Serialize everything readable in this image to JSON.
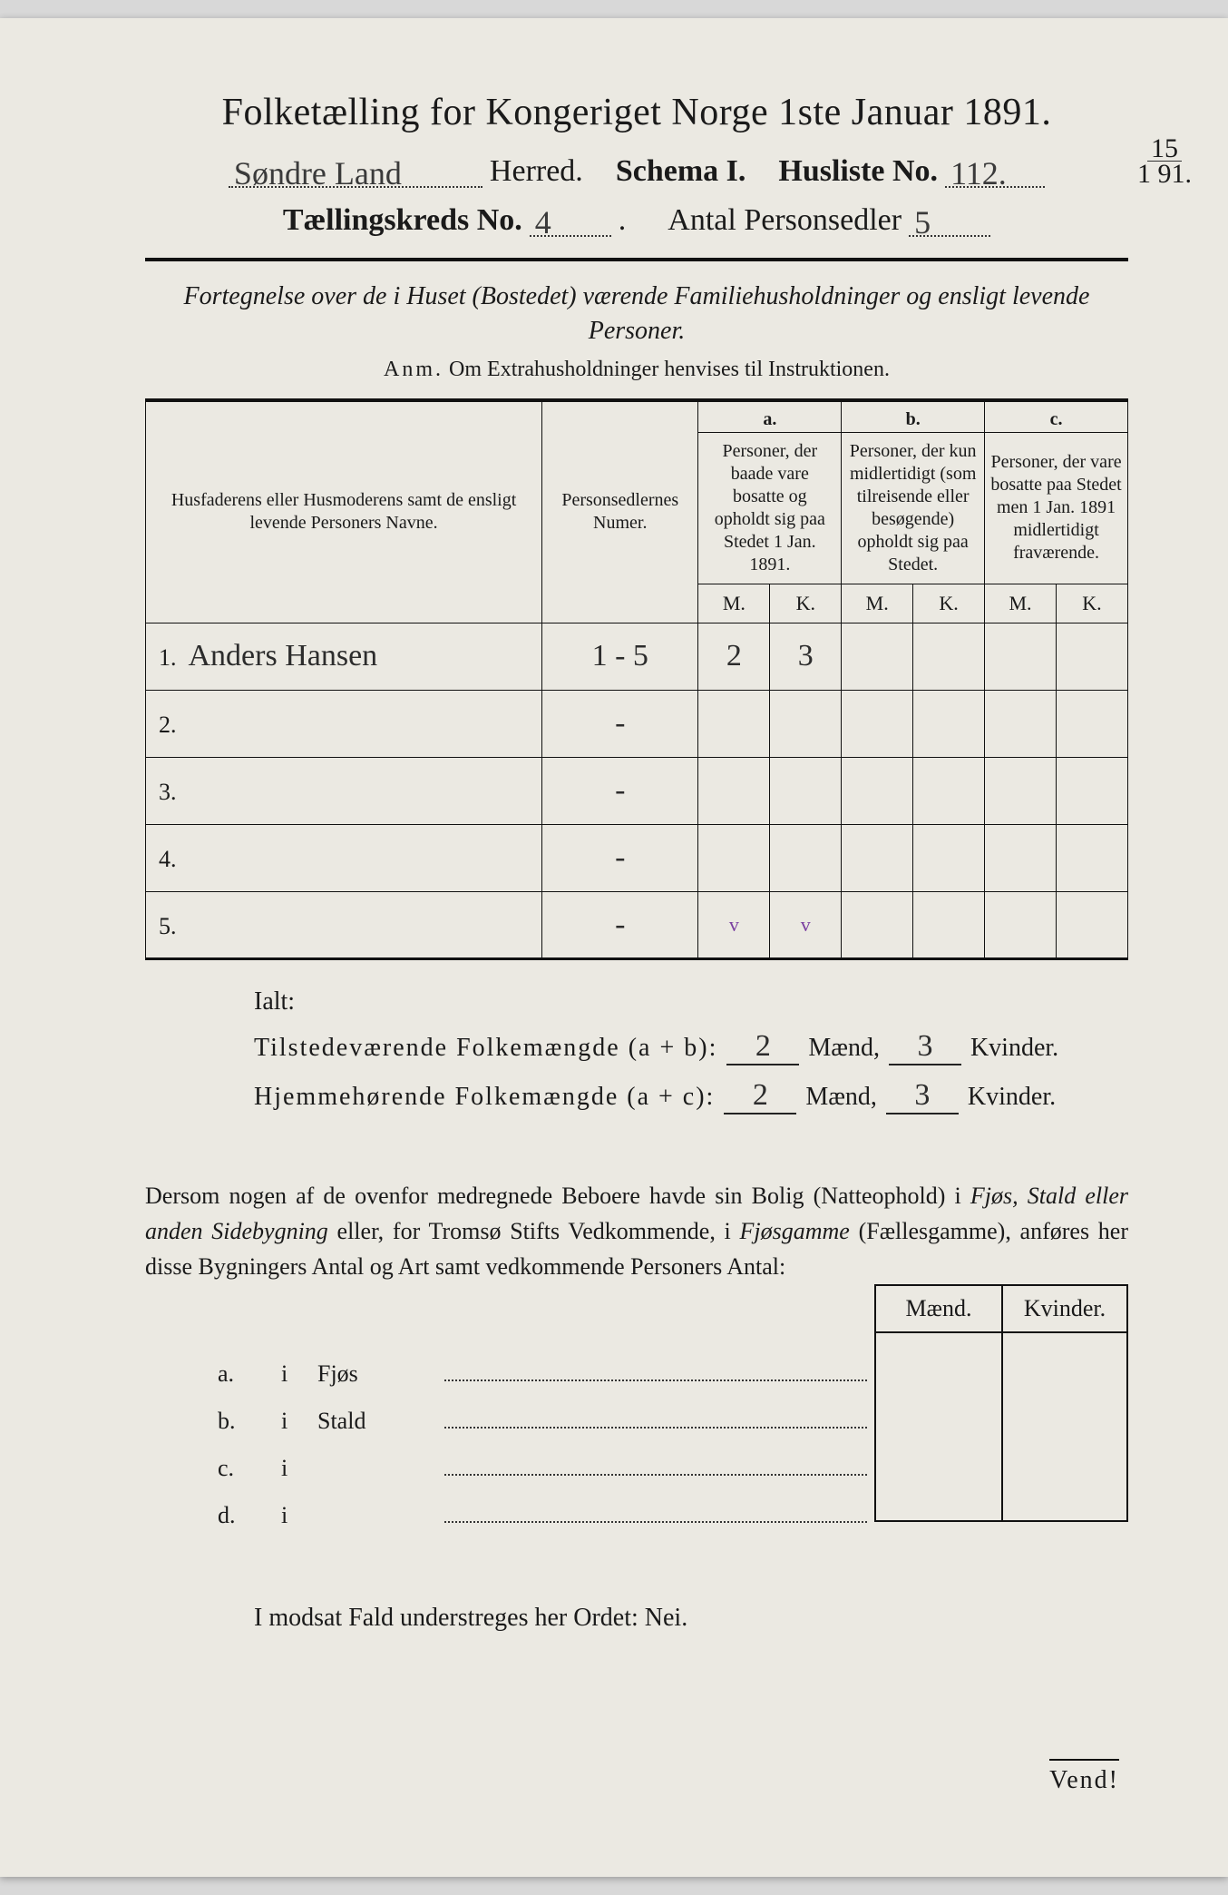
{
  "title": "Folketælling for Kongeriget Norge 1ste Januar 1891.",
  "header": {
    "herred_value": "Søndre Land",
    "herred_label": "Herred.",
    "schema_label": "Schema I.",
    "husliste_label": "Husliste No.",
    "husliste_value": "112.",
    "kreds_label": "Tællingskreds No.",
    "kreds_value": "4",
    "antal_label": "Antal Personsedler",
    "antal_value": "5",
    "margin_date_top": "15",
    "margin_date_bottom": "1",
    "margin_date_year": "91."
  },
  "intro": "Fortegnelse over de i Huset (Bostedet) værende Familiehusholdninger og ensligt levende Personer.",
  "anm_label": "Anm.",
  "anm_text": "Om Extrahusholdninger henvises til Instruktionen.",
  "table": {
    "col_name": "Husfaderens eller Husmoderens samt de ensligt levende Personers Navne.",
    "col_pers": "Personsedlernes Numer.",
    "col_a_hdr": "a.",
    "col_a": "Personer, der baade vare bosatte og opholdt sig paa Stedet 1 Jan. 1891.",
    "col_b_hdr": "b.",
    "col_b": "Personer, der kun midlertidigt (som tilreisende eller besøgende) opholdt sig paa Stedet.",
    "col_c_hdr": "c.",
    "col_c": "Personer, der vare bosatte paa Stedet men 1 Jan. 1891 midlertidigt fraværende.",
    "mk_m": "M.",
    "mk_k": "K.",
    "rows": [
      {
        "n": "1.",
        "name": "Anders Hansen",
        "pers": "1 - 5",
        "am": "2",
        "ak": "3",
        "bm": "",
        "bk": "",
        "cm": "",
        "ck": ""
      },
      {
        "n": "2.",
        "name": "",
        "pers": "-",
        "am": "",
        "ak": "",
        "bm": "",
        "bk": "",
        "cm": "",
        "ck": ""
      },
      {
        "n": "3.",
        "name": "",
        "pers": "-",
        "am": "",
        "ak": "",
        "bm": "",
        "bk": "",
        "cm": "",
        "ck": ""
      },
      {
        "n": "4.",
        "name": "",
        "pers": "-",
        "am": "",
        "ak": "",
        "bm": "",
        "bk": "",
        "cm": "",
        "ck": ""
      },
      {
        "n": "5.",
        "name": "",
        "pers": "-",
        "am": "",
        "ak": "",
        "bm": "",
        "bk": "",
        "cm": "",
        "ck": ""
      }
    ],
    "tick_a": "v",
    "tick_b": "v"
  },
  "totals": {
    "ialt": "Ialt:",
    "present_label": "Tilstedeværende Folkemængde (a + b):",
    "resident_label": "Hjemmehørende Folkemængde (a + c):",
    "maend": "Mænd,",
    "kvinder": "Kvinder.",
    "present_m": "2",
    "present_k": "3",
    "resident_m": "2",
    "resident_k": "3"
  },
  "para": "Dersom nogen af de ovenfor medregnede Beboere havde sin Bolig (Natteophold) i Fjøs, Stald eller anden Sidebygning eller, for Tromsø Stifts Vedkommende, i Fjøsgamme (Fællesgamme), anføres her disse Bygningers Antal og Art samt vedkommende Personers Antal:",
  "sub": {
    "maend": "Mænd.",
    "kvinder": "Kvinder.",
    "rows": [
      {
        "l": "a.",
        "i": "i",
        "c": "Fjøs"
      },
      {
        "l": "b.",
        "i": "i",
        "c": "Stald"
      },
      {
        "l": "c.",
        "i": "i",
        "c": ""
      },
      {
        "l": "d.",
        "i": "i",
        "c": ""
      }
    ]
  },
  "nei": "I modsat Fald understreges her Ordet: Nei.",
  "vend": "Vend!"
}
